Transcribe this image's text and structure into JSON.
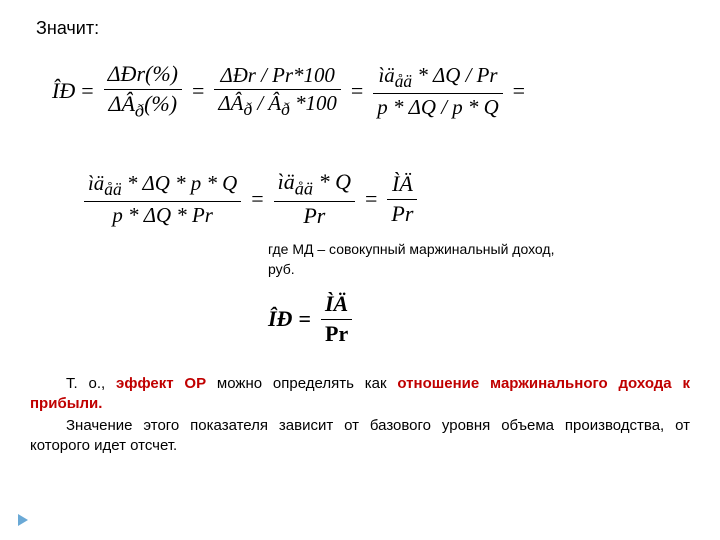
{
  "heading": "Значит:",
  "formula1": {
    "lhs": "ÎÐ",
    "f1_num": "ΔÐr(%)",
    "f1_den": "ΔÂ<sub>ð</sub>(%)",
    "f2_num": "ΔÐr / Pr*100",
    "f2_den": "ΔÂ<sub>ð</sub> / Â<sub>ð</sub> *100",
    "f3_num": "ìä<sub>åä</sub> * ΔQ / Pr",
    "f3_den": "p * ΔQ / p * Q"
  },
  "formula2": {
    "f1_num": "ìä<sub>åä</sub> * ΔQ * p * Q",
    "f1_den": "p * ΔQ * Pr",
    "f2_num": "ìä<sub>åä</sub> * Q",
    "f2_den": "Pr",
    "f3_num": "ÌÄ",
    "f3_den": "Pr"
  },
  "note": "где МД – совокупный маржинальный доход, руб.",
  "formula3": {
    "lhs": "ÎÐ",
    "num": "ÌÄ",
    "den": "Pr"
  },
  "para1_a": "Т. о., ",
  "para1_b": "эффект ОР",
  "para1_c": " можно определять как ",
  "para1_d": "отношение маржинального дохода к прибыли.",
  "para2": "Значение этого показателя зависит от базового уровня объема производства, от которого идет отсчет.",
  "style": {
    "bg": "#ffffff",
    "text_color": "#000000",
    "accent_color": "#c00000",
    "marker_color": "#6aa9d6",
    "body_fontsize": 15,
    "formula_fontsize": 22,
    "heading_fontsize": 18,
    "note_fontsize": 14,
    "font_family_body": "Arial, sans-serif",
    "font_family_formula": "Times New Roman, serif"
  }
}
